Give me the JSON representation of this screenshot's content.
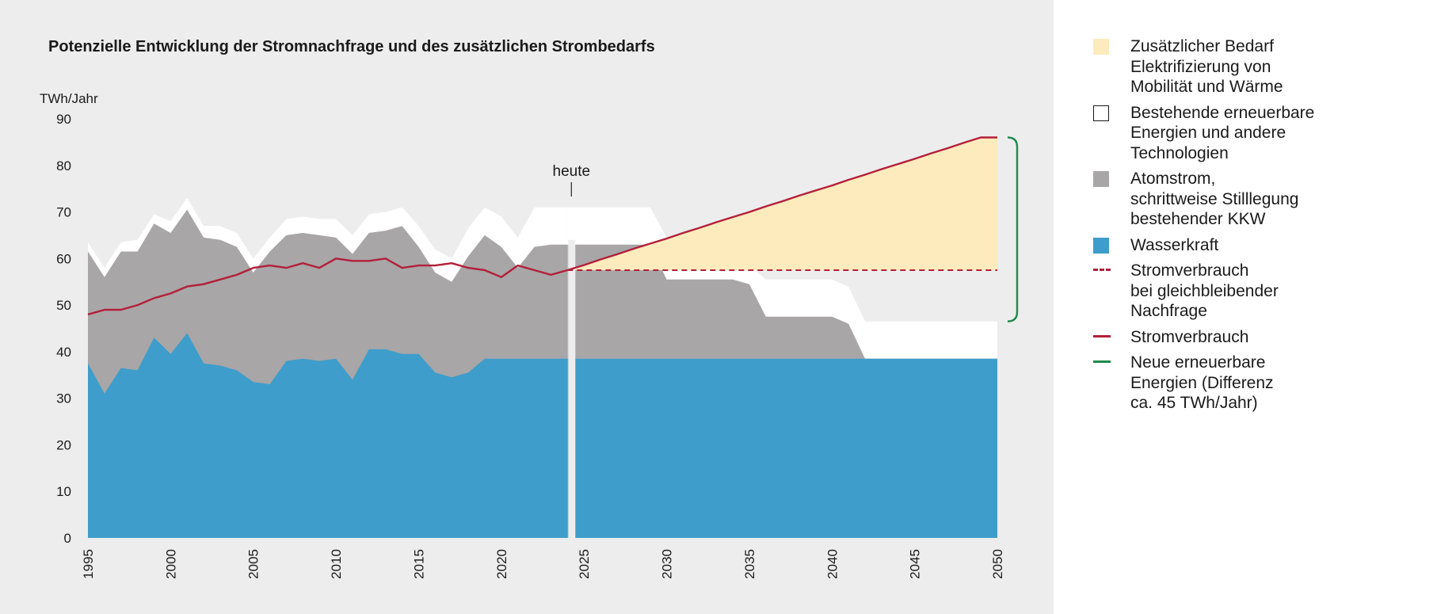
{
  "chart_data": {
    "type": "area",
    "title": "Potenzielle Entwicklung der Stromnachfrage und des zusätzlichen Strombedarfs",
    "ylabel": "TWh/Jahr",
    "ylim": [
      0,
      90
    ],
    "yticks": [
      0,
      10,
      20,
      30,
      40,
      50,
      60,
      70,
      80,
      90
    ],
    "xlim": [
      1995,
      2050
    ],
    "xticks": [
      1995,
      2000,
      2005,
      2010,
      2015,
      2020,
      2025,
      2030,
      2035,
      2040,
      2045,
      2050
    ],
    "today_year": 2024,
    "today_label": "heute",
    "historical": {
      "x": [
        1995,
        1996,
        1997,
        1998,
        1999,
        2000,
        2001,
        2002,
        2003,
        2004,
        2005,
        2006,
        2007,
        2008,
        2009,
        2010,
        2011,
        2012,
        2013,
        2014,
        2015,
        2016,
        2017,
        2018,
        2019,
        2020,
        2021,
        2022,
        2023,
        2024
      ],
      "wasserkraft": [
        37.5,
        31,
        36.5,
        36,
        43,
        39.5,
        44,
        37.5,
        37,
        36,
        33.5,
        33,
        38,
        38.5,
        38,
        38.5,
        34,
        40.5,
        40.5,
        39.5,
        39.5,
        35.5,
        34.5,
        35.5,
        38.5,
        38.5,
        38.5,
        38.5,
        38.5,
        38.5
      ],
      "total_production": [
        61.5,
        56,
        61.5,
        61.5,
        67.5,
        65.5,
        70.5,
        64.5,
        64,
        62.5,
        57,
        61.5,
        65,
        65.5,
        65,
        64.5,
        61,
        65.5,
        66,
        67,
        62.5,
        57,
        55,
        60.5,
        65,
        62.5,
        58,
        62.5,
        63,
        63
      ],
      "total_with_other": [
        63.5,
        58,
        63.5,
        64,
        69.5,
        68,
        73,
        67,
        67,
        65.5,
        60,
        64.5,
        68.5,
        69,
        68.5,
        68.5,
        65,
        69.5,
        70,
        71,
        67,
        62,
        60,
        66.5,
        71,
        69,
        64.5,
        71,
        71,
        71
      ],
      "stromverbrauch": [
        48,
        49,
        49,
        50,
        51.5,
        52.5,
        54,
        54.5,
        55.5,
        56.5,
        58,
        58.5,
        58,
        59,
        58,
        60,
        59.5,
        59.5,
        60,
        58,
        58.5,
        58.5,
        59,
        58,
        57.5,
        56,
        58.5,
        57.5,
        56.5,
        57.5
      ]
    },
    "projection": {
      "x": [
        2024,
        2025,
        2026,
        2027,
        2028,
        2029,
        2030,
        2031,
        2032,
        2033,
        2034,
        2035,
        2036,
        2037,
        2038,
        2039,
        2040,
        2041,
        2042,
        2043,
        2044,
        2045,
        2046,
        2047,
        2048,
        2049,
        2050
      ],
      "wasserkraft": [
        38.5,
        38.5,
        38.5,
        38.5,
        38.5,
        38.5,
        38.5,
        38.5,
        38.5,
        38.5,
        38.5,
        38.5,
        38.5,
        38.5,
        38.5,
        38.5,
        38.5,
        38.5,
        38.5,
        38.5,
        38.5,
        38.5,
        38.5,
        38.5,
        38.5,
        38.5,
        38.5
      ],
      "atomstrom_top": [
        63,
        63,
        63,
        63,
        63,
        63,
        55.5,
        55.5,
        55.5,
        55.5,
        55.5,
        54.5,
        47.5,
        47.5,
        47.5,
        47.5,
        47.5,
        46,
        38.5,
        38.5,
        38.5,
        38.5,
        38.5,
        38.5,
        38.5,
        38.5,
        38.5
      ],
      "bestehende_top": [
        71,
        71,
        71,
        71,
        71,
        71,
        64.5,
        64.5,
        63.5,
        60.5,
        58.5,
        58.5,
        55.5,
        55.5,
        55.5,
        55.5,
        55.5,
        54,
        46.5,
        46.5,
        46.5,
        46.5,
        46.5,
        46.5,
        46.5,
        46.5,
        46.5
      ],
      "stromverbrauch_gleichbleibend": [
        57.5,
        57.5,
        57.5,
        57.5,
        57.5,
        57.5,
        57.5,
        57.5,
        57.5,
        57.5,
        57.5,
        57.5,
        57.5,
        57.5,
        57.5,
        57.5,
        57.5,
        57.5,
        57.5,
        57.5,
        57.5,
        57.5,
        57.5,
        57.5,
        57.5,
        57.5,
        57.5
      ],
      "stromverbrauch_mit_bedarf": [
        57.5,
        58.6,
        59.8,
        60.9,
        62.1,
        63.2,
        64.3,
        65.5,
        66.6,
        67.8,
        68.9,
        70,
        71.2,
        72.3,
        73.5,
        74.6,
        75.7,
        76.9,
        78,
        79.2,
        80.3,
        81.4,
        82.6,
        83.7,
        84.9,
        86,
        86
      ]
    },
    "neue_erneuerbare_range": [
      46.5,
      86
    ],
    "series": [
      {
        "name": "Zusätzlicher Bedarf\nElektrifizierung von\nMobilität und Wärme",
        "color": "#fdebbe"
      },
      {
        "name": "Bestehende erneuerbare\nEnergien und andere\nTechnologien",
        "color": "#ffffff"
      },
      {
        "name": "Atomstrom,\nschrittweise Stilllegung\nbestehender KKW",
        "color": "#a8a6a7"
      },
      {
        "name": "Wasserkraft",
        "color": "#3e9dcb"
      },
      {
        "name": "Stromverbrauch\nbei gleichbleibender\nNachfrage",
        "color": "#b31f3a"
      },
      {
        "name": "Stromverbrauch",
        "color": "#b31f3a"
      },
      {
        "name": "Neue erneuerbare\nEnergien (Differenz\nca. 45 TWh/Jahr)",
        "color": "#1e8a4a"
      }
    ],
    "grid": false,
    "legend_position": "right"
  }
}
